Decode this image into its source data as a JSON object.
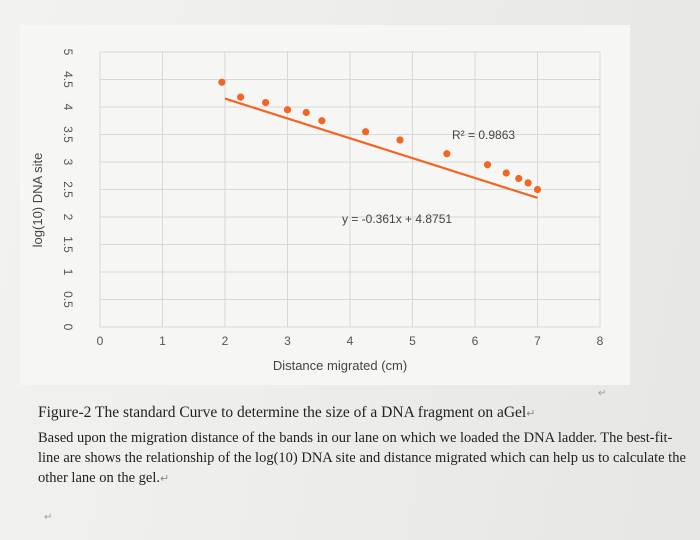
{
  "chart_data": {
    "type": "scatter",
    "xlabel": "Distance migrated (cm)",
    "ylabel": "log(10) DNA site",
    "xlim": [
      0,
      8
    ],
    "ylim": [
      0,
      5
    ],
    "x_ticks": [
      "0",
      "1",
      "2",
      "3",
      "4",
      "5",
      "6",
      "7",
      "8"
    ],
    "y_ticks": [
      "0",
      "0.5",
      "1",
      "1.5",
      "2",
      "2.5",
      "3",
      "3.5",
      "4",
      "4.5",
      "5"
    ],
    "grid": true,
    "points": [
      {
        "x": 1.95,
        "y": 4.45
      },
      {
        "x": 2.25,
        "y": 4.18
      },
      {
        "x": 2.65,
        "y": 4.08
      },
      {
        "x": 3.0,
        "y": 3.95
      },
      {
        "x": 3.3,
        "y": 3.9
      },
      {
        "x": 3.55,
        "y": 3.75
      },
      {
        "x": 4.25,
        "y": 3.55
      },
      {
        "x": 4.8,
        "y": 3.4
      },
      {
        "x": 5.55,
        "y": 3.15
      },
      {
        "x": 6.2,
        "y": 2.95
      },
      {
        "x": 6.5,
        "y": 2.8
      },
      {
        "x": 6.7,
        "y": 2.7
      },
      {
        "x": 6.85,
        "y": 2.62
      },
      {
        "x": 7.0,
        "y": 2.5
      }
    ],
    "trendline": {
      "slope": -0.361,
      "intercept": 4.8751,
      "x_range": [
        2.0,
        7.0
      ]
    },
    "equation_label": "y = -0.361x + 4.8751",
    "r2_label": "R² = 0.9863",
    "colors": {
      "points": "#f26522",
      "trendline": "#f26522",
      "grid": "#d8d8d8"
    }
  },
  "caption": {
    "figure_title": "Figure-2 The standard Curve to determine the size of a DNA fragment on aGel",
    "description": "Based upon the migration distance of the bands in our lane on which we loaded the DNA ladder. The best-fit-line are shows the relationship of the log(10) DNA site and distance migrated which can help us to calculate the other lane on the gel."
  }
}
